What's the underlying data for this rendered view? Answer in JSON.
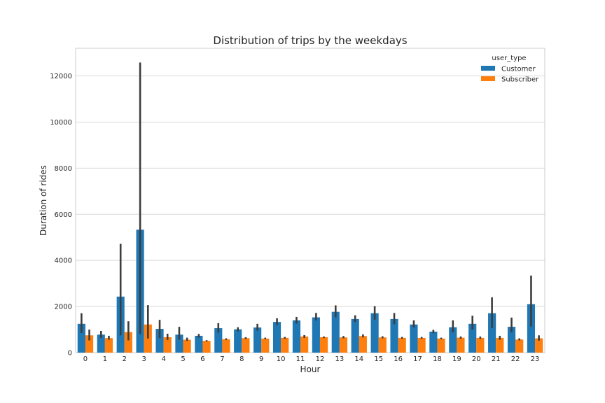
{
  "chart_data": {
    "type": "bar",
    "title": "Distribution of trips by the weekdays",
    "xlabel": "Hour",
    "ylabel": "Duration of rides",
    "categories": [
      "0",
      "1",
      "2",
      "3",
      "4",
      "5",
      "6",
      "7",
      "8",
      "9",
      "10",
      "11",
      "12",
      "13",
      "14",
      "15",
      "16",
      "17",
      "18",
      "19",
      "20",
      "21",
      "22",
      "23"
    ],
    "ylim": [
      0,
      13200
    ],
    "yticks": [
      0,
      2000,
      4000,
      6000,
      8000,
      10000,
      12000
    ],
    "ytick_labels": [
      "0",
      "2000",
      "4000",
      "6000",
      "8000",
      "10000",
      "12000"
    ],
    "grid": true,
    "legend": {
      "title": "user_type",
      "position": "top-right"
    },
    "series": [
      {
        "name": "Customer",
        "color": "#1f77b4",
        "values": [
          1250,
          780,
          2430,
          5330,
          1030,
          780,
          730,
          1060,
          1010,
          1090,
          1330,
          1400,
          1530,
          1770,
          1460,
          1710,
          1460,
          1220,
          910,
          1100,
          1250,
          1710,
          1120,
          2100
        ],
        "error_low": [
          850,
          640,
          750,
          800,
          630,
          560,
          650,
          870,
          920,
          950,
          1200,
          1260,
          1400,
          1530,
          1330,
          1430,
          1230,
          1090,
          840,
          880,
          1000,
          1070,
          880,
          1130
        ],
        "error_high": [
          1710,
          940,
          4720,
          12580,
          1420,
          1120,
          810,
          1280,
          1100,
          1250,
          1490,
          1550,
          1720,
          2050,
          1620,
          2020,
          1720,
          1400,
          990,
          1400,
          1600,
          2400,
          1520,
          3340
        ]
      },
      {
        "name": "Subscriber",
        "color": "#ff7f0e",
        "values": [
          750,
          630,
          890,
          1220,
          670,
          560,
          510,
          580,
          630,
          610,
          640,
          700,
          670,
          660,
          720,
          660,
          640,
          640,
          610,
          650,
          640,
          640,
          570,
          620
        ],
        "error_low": [
          530,
          560,
          530,
          610,
          550,
          510,
          480,
          550,
          590,
          580,
          600,
          640,
          630,
          620,
          660,
          620,
          600,
          600,
          580,
          600,
          590,
          560,
          530,
          520
        ],
        "error_high": [
          1000,
          730,
          1360,
          2060,
          820,
          650,
          540,
          620,
          670,
          650,
          680,
          760,
          700,
          720,
          790,
          710,
          680,
          680,
          650,
          700,
          700,
          730,
          620,
          750
        ]
      }
    ]
  }
}
